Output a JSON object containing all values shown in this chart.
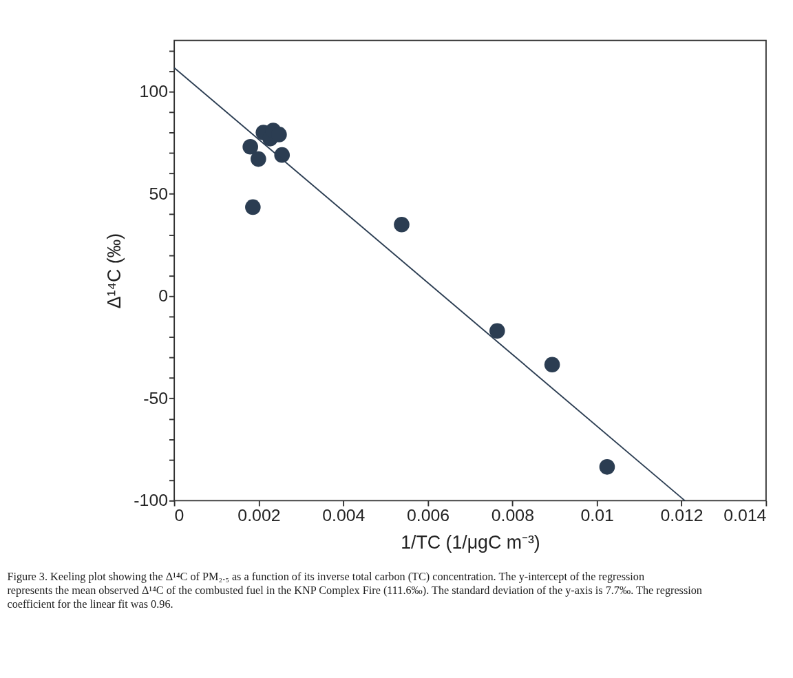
{
  "chart_data": {
    "type": "scatter",
    "xlabel": "1/TC (1/μgC m⁻³)",
    "ylabel": "Δ¹⁴C (‰)",
    "xlim": [
      0,
      0.014
    ],
    "ylim": [
      -100,
      125
    ],
    "xticks": [
      0,
      0.002,
      0.004,
      0.006,
      0.008,
      0.01,
      0.012,
      0.014
    ],
    "yticks": [
      -100,
      {
        "value": -90,
        "label": null
      },
      {
        "value": -80,
        "label": null
      },
      {
        "value": -70,
        "label": null
      },
      {
        "value": -60,
        "label": null
      },
      -50,
      {
        "value": -40,
        "label": null
      },
      {
        "value": -30,
        "label": null
      },
      {
        "value": -20,
        "label": null
      },
      {
        "value": -10,
        "label": null
      },
      0,
      {
        "value": 10,
        "label": null
      },
      {
        "value": 20,
        "label": null
      },
      {
        "value": 30,
        "label": null
      },
      {
        "value": 40,
        "label": null
      },
      50,
      {
        "value": 60,
        "label": null
      },
      {
        "value": 70,
        "label": null
      },
      {
        "value": 80,
        "label": null
      },
      {
        "value": 90,
        "label": null
      },
      100,
      {
        "value": 110,
        "label": null
      },
      {
        "value": 120,
        "label": null
      }
    ],
    "grid": false,
    "series": [
      {
        "marker": "circle",
        "color": "#2b3d52",
        "x": [
          0.0018,
          0.00186,
          0.00199,
          0.00211,
          0.00227,
          0.00234,
          0.00248,
          0.00255,
          0.00538,
          0.00764,
          0.00894,
          0.01024
        ],
        "values": [
          73,
          43.5,
          67,
          80,
          77,
          81,
          79,
          69,
          35,
          -17,
          -33.5,
          -83.5
        ]
      },
      {
        "type": "line",
        "marker": "none",
        "color": "#2b3d52",
        "x": [
          0,
          0.01208
        ],
        "values": [
          111.6,
          -100
        ]
      }
    ],
    "annotations": [
      "Figure 3. Keeling plot showing the Δ¹⁴C of PM₂.₅ as a function of its inverse total carbon (TC) concentration. The y-intercept of the regression represents the mean observed Δ¹⁴C of the combusted fuel in the KNP Complex Fire (111.6‰). The standard deviation of the y-axis is 7.7‰. The regression coefficient for the linear fit was 0.96."
    ]
  }
}
